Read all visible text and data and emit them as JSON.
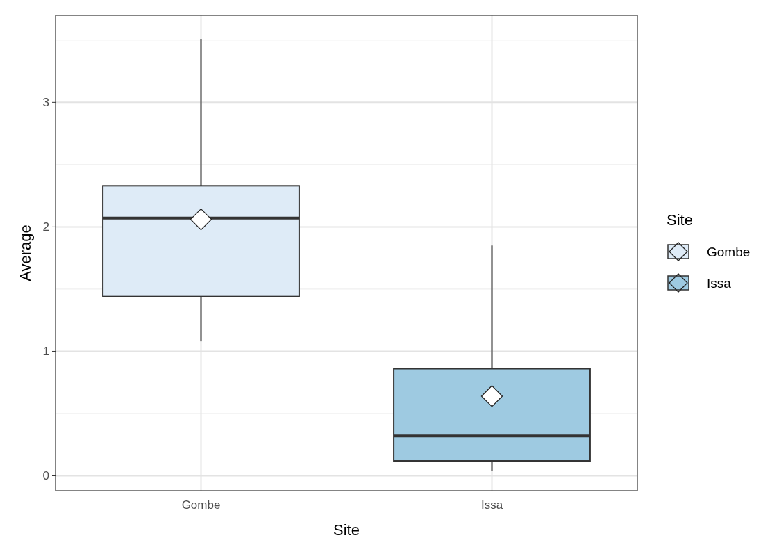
{
  "chart_data": {
    "type": "box",
    "xlabel": "Site",
    "ylabel": "Average",
    "legend_title": "Site",
    "categories": [
      "Gombe",
      "Issa"
    ],
    "series": [
      {
        "name": "Gombe",
        "color": "#deebf7",
        "boxes": [
          {
            "low": 1.08,
            "q1": 1.44,
            "median": 2.07,
            "q3": 2.33,
            "high": 3.51,
            "mean": 2.06
          },
          null
        ]
      },
      {
        "name": "Issa",
        "color": "#9ecae1",
        "boxes": [
          null,
          {
            "low": 0.04,
            "q1": 0.12,
            "median": 0.32,
            "q3": 0.86,
            "high": 1.85,
            "mean": 0.64
          }
        ]
      }
    ],
    "ylim": [
      -0.12,
      3.7
    ],
    "yticks": [
      0,
      1,
      2,
      3
    ],
    "grid": true,
    "legend": "right",
    "marker": "diamond"
  }
}
